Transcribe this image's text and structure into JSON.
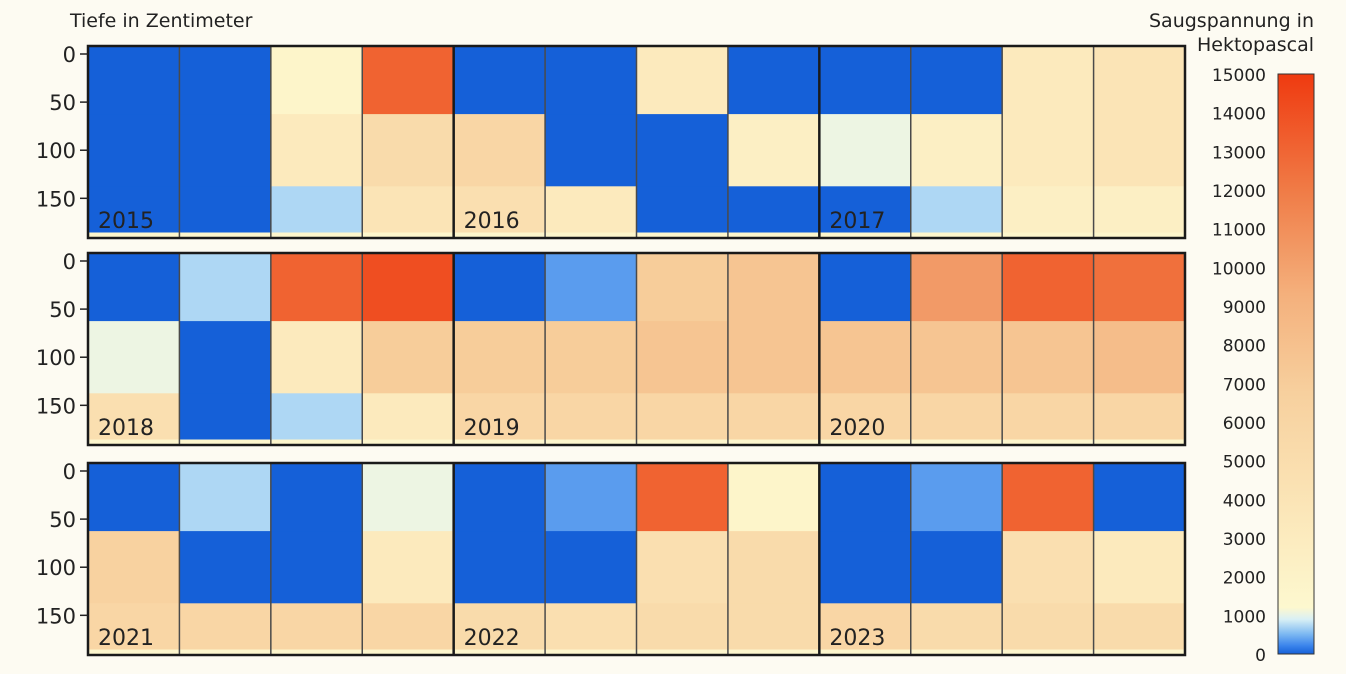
{
  "chart_data": {
    "type": "heatmap",
    "title": "",
    "ylabel": "Tiefe in Zentimeter",
    "colorbar_label": "Saugspannung in Hektopascal",
    "colorbar_label_lines": [
      "Saugspannung in",
      "Hektopascal"
    ],
    "colorbar_range": [
      0,
      15000
    ],
    "colorbar_ticks": [
      0,
      1000,
      2000,
      3000,
      4000,
      5000,
      6000,
      7000,
      8000,
      9000,
      10000,
      11000,
      12000,
      13000,
      14000,
      15000
    ],
    "y_ticks": [
      0,
      50,
      100,
      150
    ],
    "y_range": [
      0,
      185
    ],
    "y_inverted": true,
    "quarters_per_year": 4,
    "colors": {
      "wet": "#1560d8",
      "moist": "#6aaaf0",
      "light": "#b6dcf7",
      "neutral": "#fdf6cc",
      "medium": "#f7d4a4",
      "dry": "#f08a52",
      "very_dry": "#ef3d12",
      "background": "#fdfbf2"
    },
    "rows": [
      {
        "years": [
          "2015",
          "2016",
          "2017"
        ],
        "typical_values": [
          {
            "depth": 25,
            "values": [
              0,
              0,
              2000,
              12000,
              0,
              0,
              3000,
              0,
              0,
              0,
              3000,
              3500
            ]
          },
          {
            "depth": 100,
            "values": [
              0,
              0,
              3000,
              4500,
              5000,
              0,
              0,
              2500,
              1500,
              2500,
              3000,
              3500
            ]
          },
          {
            "depth": 175,
            "values": [
              0,
              0,
              1000,
              3500,
              4000,
              3000,
              0,
              0,
              0,
              1000,
              2500,
              2500
            ]
          }
        ]
      },
      {
        "years": [
          "2018",
          "2019",
          "2020"
        ],
        "typical_values": [
          {
            "depth": 25,
            "values": [
              0,
              1000,
              12000,
              13500,
              0,
              500,
              6000,
              6500,
              0,
              9000,
              12000,
              11000
            ]
          },
          {
            "depth": 100,
            "values": [
              1500,
              0,
              3000,
              6000,
              6000,
              6000,
              6500,
              6500,
              6500,
              6500,
              6500,
              7000
            ]
          },
          {
            "depth": 175,
            "values": [
              4000,
              0,
              1000,
              3000,
              5000,
              5000,
              5000,
              5000,
              5000,
              5000,
              5000,
              5000
            ]
          }
        ]
      },
      {
        "years": [
          "2021",
          "2022",
          "2023"
        ],
        "typical_values": [
          {
            "depth": 25,
            "values": [
              0,
              1000,
              0,
              1500,
              0,
              500,
              12000,
              2000,
              0,
              500,
              12000,
              0
            ]
          },
          {
            "depth": 100,
            "values": [
              5500,
              0,
              0,
              3000,
              0,
              0,
              4000,
              4500,
              0,
              0,
              4000,
              3000
            ]
          },
          {
            "depth": 175,
            "values": [
              5000,
              5000,
              5000,
              5000,
              4500,
              4000,
              4500,
              4500,
              5000,
              4500,
              4500,
              4500
            ]
          }
        ]
      }
    ]
  }
}
